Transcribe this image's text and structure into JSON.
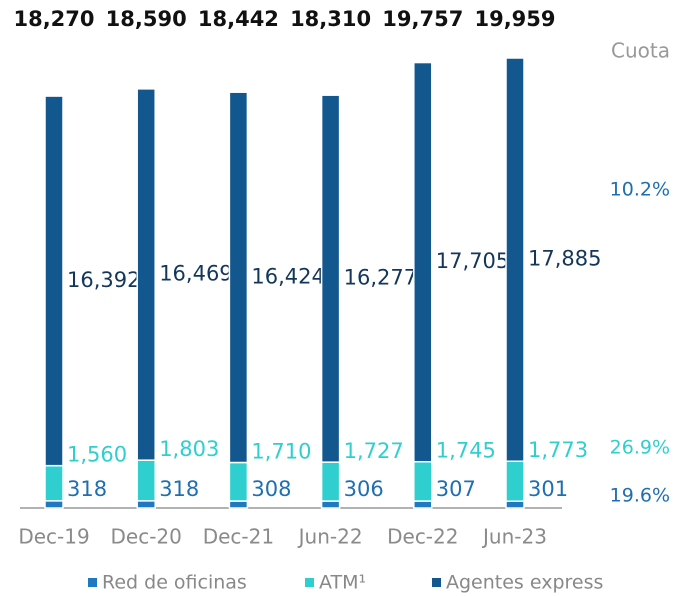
{
  "chart_data": {
    "type": "stacked-bar",
    "categories": [
      "Dec-19",
      "Dec-20",
      "Dec-21",
      "Jun-22",
      "Dec-22",
      "Jun-23"
    ],
    "series": [
      {
        "name": "Red de oficinas",
        "color": "#1f78c1",
        "label_color": "#1f6fb0",
        "values": [
          318,
          318,
          308,
          306,
          307,
          301
        ],
        "share": 19.6,
        "share_label": "19.6%"
      },
      {
        "name": "ATM¹",
        "color": "#2fcfcf",
        "label_color": "#2fcfcf",
        "values": [
          1560,
          1803,
          1710,
          1727,
          1745,
          1773
        ],
        "value_labels": [
          "1,560",
          "1,803",
          "1,710",
          "1,727",
          "1,745",
          "1,773"
        ],
        "share": 26.9,
        "share_label": "26.9%"
      },
      {
        "name": "Agentes express",
        "color": "#12578e",
        "label_color": "#14365a",
        "values": [
          16392,
          16469,
          16424,
          16277,
          17705,
          17885
        ],
        "value_labels": [
          "16,392",
          "16,469",
          "16,424",
          "16,277",
          "17,705",
          "17,885"
        ],
        "share": 10.2,
        "share_label": "10.2%"
      }
    ],
    "totals": [
      18270,
      18590,
      18442,
      18310,
      19757,
      19959
    ],
    "total_labels": [
      "18,270",
      "18,590",
      "18,442",
      "18,310",
      "19,757",
      "19,959"
    ],
    "share_title": "Cuota",
    "share_colors": [
      "#1f6fb0",
      "#2fcfcf",
      "#1f6fb0"
    ]
  }
}
